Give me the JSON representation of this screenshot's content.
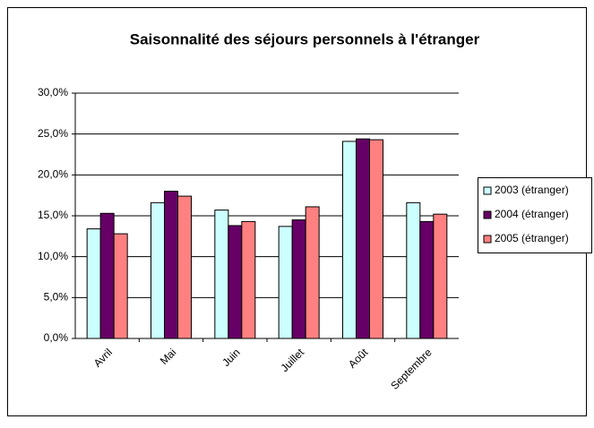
{
  "chart_data": {
    "type": "bar",
    "title": "Saisonnalité des séjours personnels à l'étranger",
    "categories": [
      "Avril",
      "Mai",
      "Juin",
      "Juillet",
      "Août",
      "Septembre"
    ],
    "series": [
      {
        "name": "2003 (étranger)",
        "color": "#ccffff",
        "values": [
          13.4,
          16.6,
          15.7,
          13.7,
          24.1,
          16.6
        ]
      },
      {
        "name": "2004 (étranger)",
        "color": "#660066",
        "values": [
          15.3,
          18.0,
          13.8,
          14.5,
          24.4,
          14.3
        ]
      },
      {
        "name": "2005 (étranger)",
        "color": "#ff8080",
        "values": [
          12.8,
          17.4,
          14.3,
          16.1,
          24.3,
          15.2
        ]
      }
    ],
    "ylim": [
      0,
      30
    ],
    "yticks": [
      {
        "value": 0,
        "label": "0,0%"
      },
      {
        "value": 5,
        "label": "5,0%"
      },
      {
        "value": 10,
        "label": "10,0%"
      },
      {
        "value": 15,
        "label": "15,0%"
      },
      {
        "value": 20,
        "label": "20,0%"
      },
      {
        "value": 25,
        "label": "25,0%"
      },
      {
        "value": 30,
        "label": "30,0%"
      }
    ],
    "grid": true,
    "legend": "right"
  }
}
